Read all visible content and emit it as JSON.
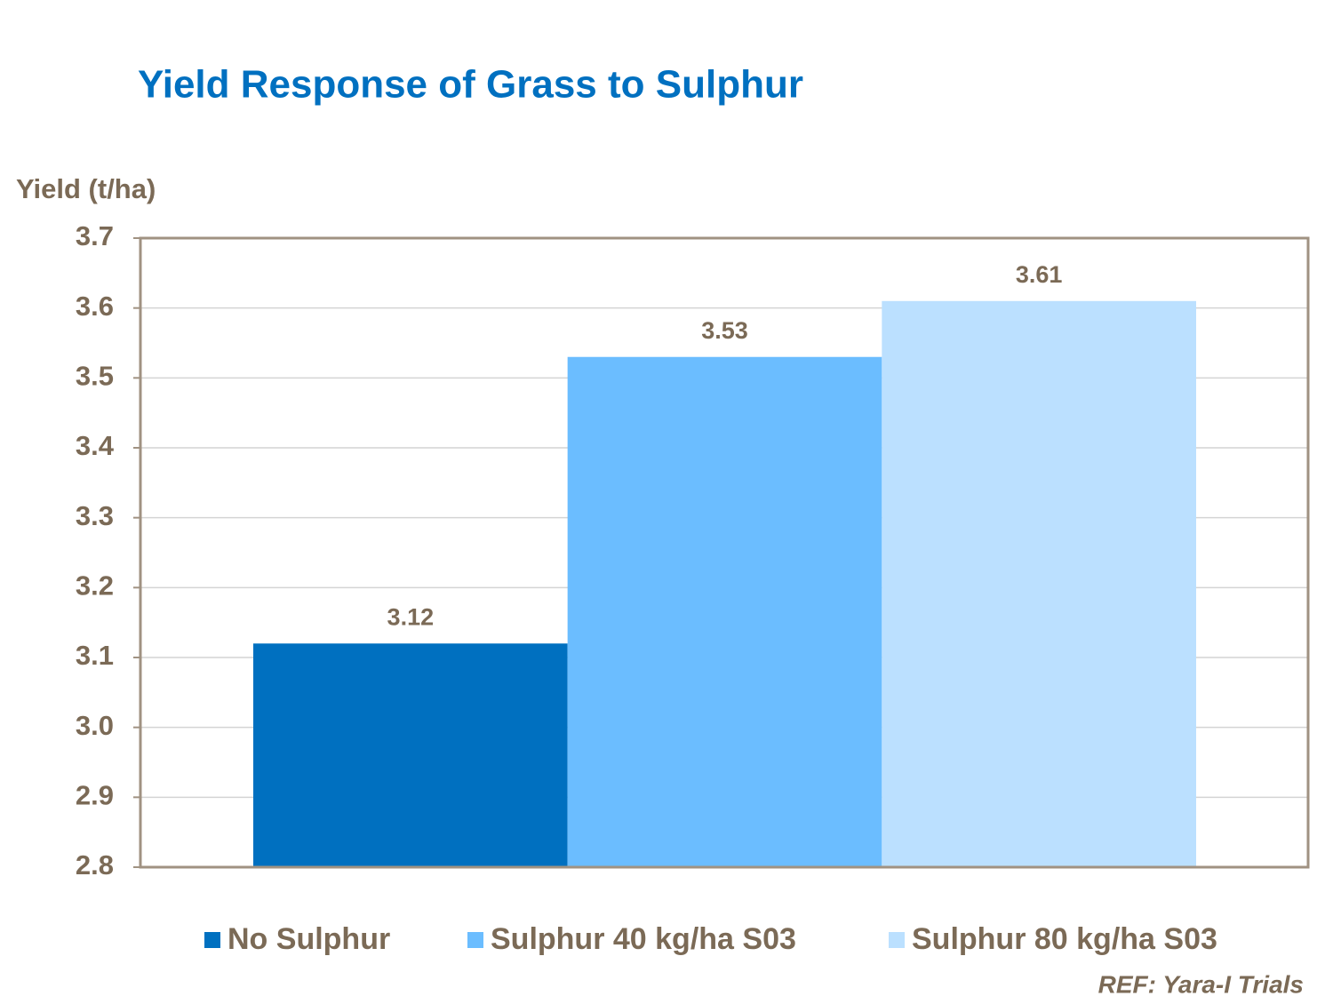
{
  "chart_data": {
    "type": "bar",
    "title": "Yield Response of Grass to Sulphur",
    "y_label": "Yield (t/ha)",
    "source": "REF: Yara-I Trials",
    "categories": [
      null
    ],
    "series": [
      {
        "name": "No Sulphur",
        "color": "#0070C0",
        "values": [
          3.12
        ]
      },
      {
        "name": "Sulphur 40 kg/ha S03",
        "color": "#6BBDFF",
        "values": [
          3.53
        ]
      },
      {
        "name": "Sulphur 80 kg/ha S03",
        "color": "#BBE0FF",
        "values": [
          3.61
        ]
      }
    ],
    "ylim": [
      2.8,
      3.7
    ],
    "yticks": [
      2.8,
      2.9,
      {
        "value": 3,
        "label": "3.0"
      },
      3.1,
      3.2,
      3.3,
      3.4,
      3.5,
      3.6,
      3.7
    ],
    "grid": true,
    "legend": "bottom"
  }
}
